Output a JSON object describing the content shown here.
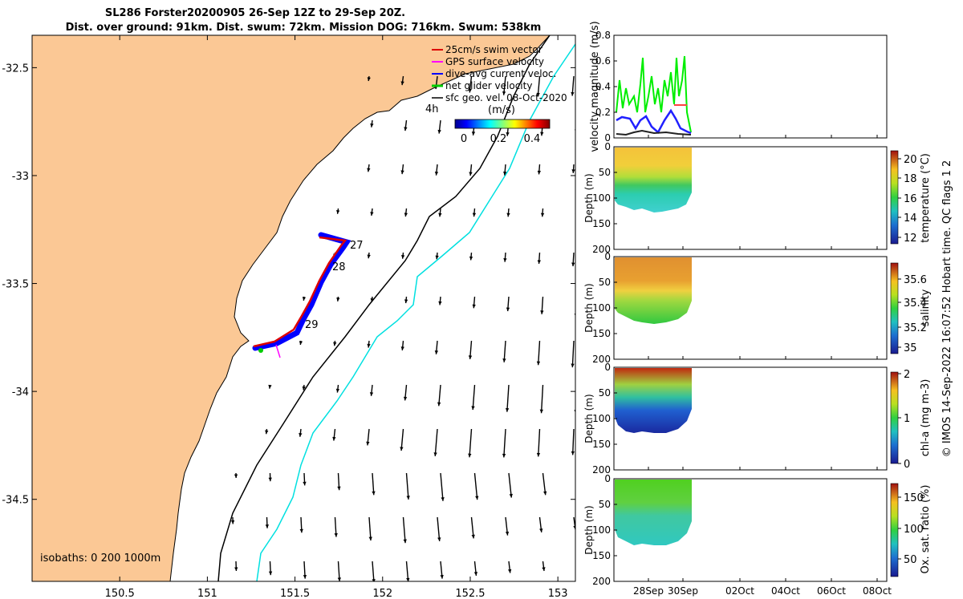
{
  "title": {
    "line1": "SL286 Forster20200905 26-Sep 12Z to 29-Sep 20Z.",
    "line2": "Dist. over ground: 91km. Dist. swum: 72km. Mission DOG: 716km. Swum: 538km"
  },
  "map": {
    "yticks": [
      {
        "v": -32.5,
        "label": "-32.5"
      },
      {
        "v": -33,
        "label": "-33"
      },
      {
        "v": -33.5,
        "label": "-33.5"
      },
      {
        "v": -34,
        "label": "-34"
      },
      {
        "v": -34.5,
        "label": "-34.5"
      }
    ],
    "xticks": [
      {
        "v": 150.5,
        "label": "150.5"
      },
      {
        "v": 151,
        "label": "151"
      },
      {
        "v": 151.5,
        "label": "151.5"
      },
      {
        "v": 152,
        "label": "152"
      },
      {
        "v": 152.5,
        "label": "152.5"
      },
      {
        "v": 153,
        "label": "153"
      }
    ],
    "xlim": [
      150.0,
      153.1
    ],
    "ylim": [
      -34.88,
      -32.35
    ],
    "legend": [
      {
        "label": "25cm/s swim vector",
        "color": "#dd0000"
      },
      {
        "label": "GPS surface velocity",
        "color": "#ff00ff"
      },
      {
        "label": "dive-avg current veloc.",
        "color": "#0000ff"
      },
      {
        "label": "net glider velocity",
        "color": "#00cc00"
      },
      {
        "label": "sfc geo. vel. 08-Oct-2020",
        "color": "#000000"
      }
    ],
    "legend_extra": "4h",
    "colorbar": {
      "label": "(m/s)",
      "ticks": [
        "0",
        "0.2",
        "0.4"
      ]
    },
    "day_labels": [
      "27",
      "28",
      "29"
    ],
    "isobath_label": "isobaths: 0   200  1000m",
    "colors": {
      "land": "#fbc895",
      "isobath200": "#000000",
      "isobath1000": "#00e0e0",
      "track": "#0000ff",
      "swim": "#dd0000"
    }
  },
  "panels": {
    "velocity": {
      "ylabel": "velocity magnitude (m/s)",
      "yticks": [
        "0",
        "0.2",
        "0.4",
        "0.6",
        "0.8"
      ]
    },
    "depth_ylabel": "Depth (m)",
    "depth_ticks": [
      "0",
      "50",
      "100",
      "150",
      "200"
    ],
    "xticks": [
      "28Sep",
      "30Sep",
      "02Oct",
      "04Oct",
      "06Oct",
      "08Oct"
    ],
    "temperature": {
      "cbar_label": "temperature (°C)",
      "cbar_ticks": [
        "12",
        "14",
        "16",
        "18",
        "20"
      ]
    },
    "salinity": {
      "cbar_label": "salinity",
      "cbar_ticks": [
        "35",
        "35.2",
        "35.4",
        "35.6"
      ]
    },
    "chla": {
      "cbar_label": "chl-a (mg m-3)",
      "cbar_ticks": [
        "0",
        "1",
        "2"
      ]
    },
    "oxsat": {
      "cbar_label": "Ox. sat. ratio (%)",
      "cbar_ticks": [
        "50",
        "100",
        "150"
      ]
    }
  },
  "side_note": "© IMOS 14-Sep-2022 16:07:52 Hobart time. QC flags 1  2"
}
